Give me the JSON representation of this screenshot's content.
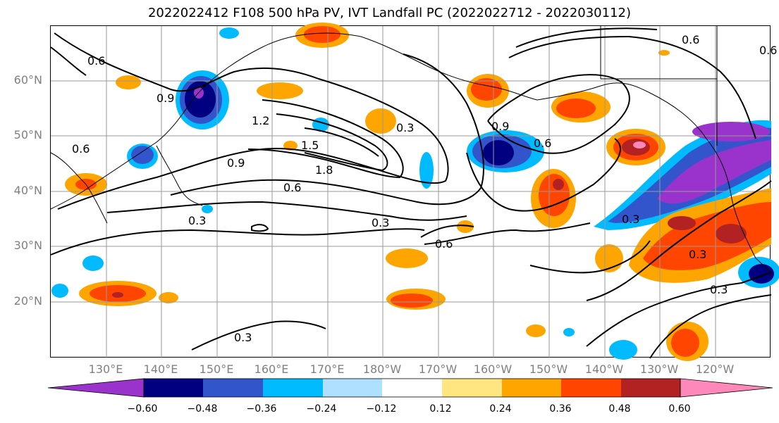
{
  "title": "2022022412 F108 500 hPa PV, IVT Landfall PC (2022022712 - 2022030112)",
  "lat_labels": [
    "60°N",
    "50°N",
    "40°N",
    "30°N",
    "20°N"
  ],
  "lon_labels": [
    "130°E",
    "140°E",
    "150°E",
    "160°E",
    "170°E",
    "180°W",
    "170°W",
    "160°W",
    "150°W",
    "140°W",
    "130°W",
    "120°W"
  ],
  "contour_labels": [
    "0.6",
    "0.9",
    "1.2",
    "1.5",
    "1.8",
    "0.9",
    "0.6",
    "0.3",
    "0.3",
    "0.6",
    "0.3",
    "0.9",
    "0.6",
    "0.3",
    "0.3",
    "0.3",
    "0.3",
    "0.6",
    "0.6",
    "0.6"
  ],
  "colorbar": {
    "colors": [
      "#9933cc",
      "#000080",
      "#3355cc",
      "#00bbff",
      "#b0e0ff",
      "#ffffff",
      "#ffe680",
      "#ffa500",
      "#ff4500",
      "#b22222",
      "#ff88bb"
    ],
    "tick_labels": [
      "−0.60",
      "−0.48",
      "−0.36",
      "−0.24",
      "−0.12",
      "0.12",
      "0.24",
      "0.36",
      "0.48",
      "0.60"
    ]
  }
}
